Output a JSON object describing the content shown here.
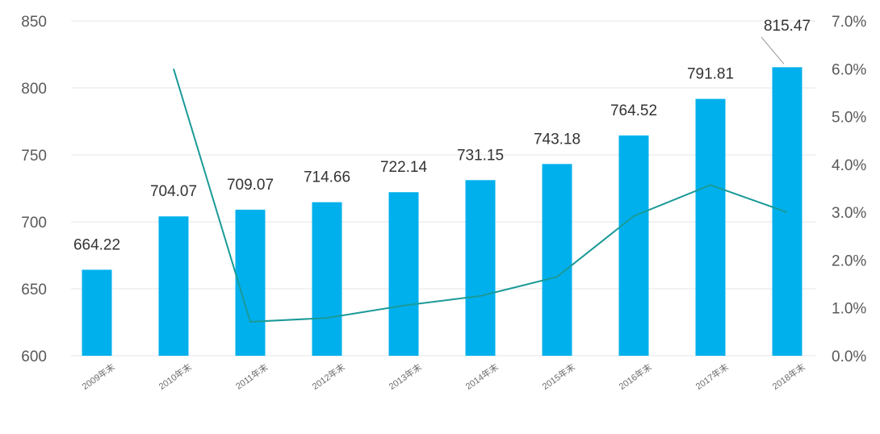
{
  "colors": {
    "bar": "#00b0ec",
    "line": "#1a9a98",
    "grid": "#e6e6e6",
    "tick_text": "#595959",
    "label_text": "#333333"
  },
  "chart_data": {
    "type": "bar",
    "title": "",
    "xlabel": "",
    "ylabel": "",
    "categories": [
      "2009年末",
      "2010年末",
      "2011年末",
      "2012年末",
      "2013年末",
      "2014年末",
      "2015年末",
      "2016年末",
      "2017年末",
      "2018年末"
    ],
    "values": [
      664.22,
      704.07,
      709.07,
      714.66,
      722.14,
      731.15,
      743.18,
      764.52,
      791.81,
      815.47
    ],
    "value_labels": [
      "664.22",
      "704.07",
      "709.07",
      "714.66",
      "722.14",
      "731.15",
      "743.18",
      "764.52",
      "791.81",
      "815.47"
    ],
    "ylim": [
      600,
      850
    ],
    "yticks": [
      "600",
      "650",
      "700",
      "750",
      "800",
      "850"
    ],
    "line": {
      "axis": "secondary",
      "values": [
        null,
        6.0,
        0.71,
        0.79,
        1.05,
        1.25,
        1.65,
        2.92,
        3.57,
        3.0
      ]
    },
    "y2lim": [
      0,
      7
    ],
    "y2ticks": [
      "0.0%",
      "1.0%",
      "2.0%",
      "3.0%",
      "4.0%",
      "5.0%",
      "6.0%",
      "7.0%"
    ],
    "grid": true,
    "legend": "none"
  }
}
